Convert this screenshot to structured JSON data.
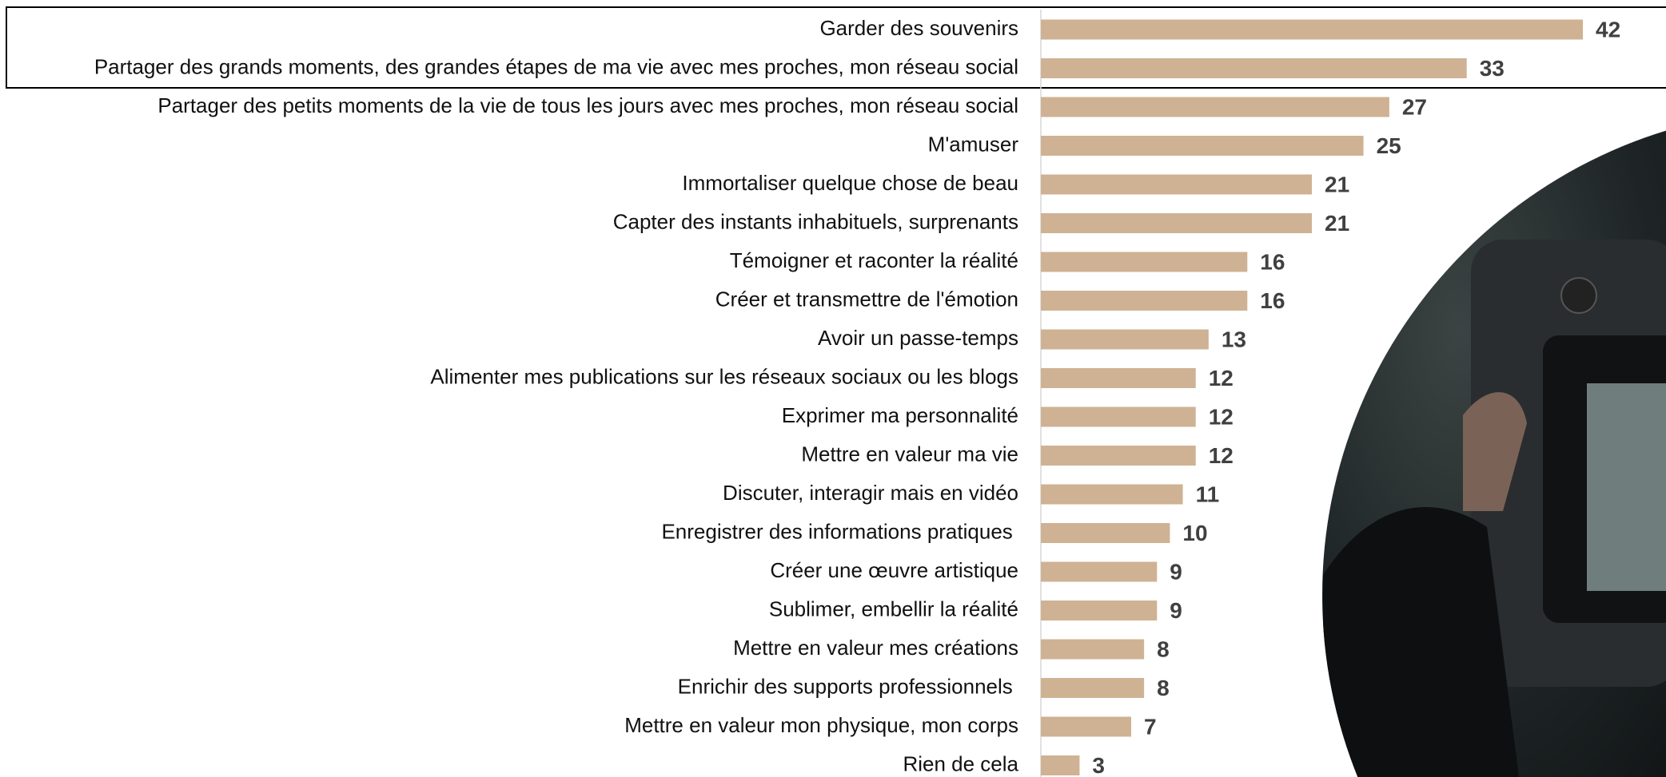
{
  "chart_data": {
    "type": "bar",
    "orientation": "horizontal",
    "color": "#cfb293",
    "categories": [
      "Garder des souvenirs",
      "Partager des grands moments, des grandes étapes de ma vie avec mes proches, mon réseau social",
      "Partager des petits moments de la vie de tous les jours avec mes proches, mon réseau social",
      "M'amuser",
      "Immortaliser quelque chose de beau",
      "Capter des instants inhabituels, surprenants",
      "Témoigner et raconter la réalité",
      "Créer et transmettre de l'émotion",
      "Avoir un passe-temps",
      "Alimenter mes publications sur les réseaux sociaux ou les blogs",
      "Exprimer ma personnalité",
      "Mettre en valeur ma vie",
      "Discuter, interagir mais en vidéo",
      "Enregistrer des informations pratiques ",
      "Créer une œuvre artistique",
      "Sublimer, embellir la réalité",
      "Mettre en valeur mes créations",
      "Enrichir des supports professionnels ",
      "Mettre en valeur mon physique, mon corps",
      "Rien de cela"
    ],
    "values": [
      42,
      33,
      27,
      25,
      21,
      21,
      16,
      16,
      13,
      12,
      12,
      12,
      11,
      10,
      9,
      9,
      8,
      8,
      7,
      3
    ]
  }
}
